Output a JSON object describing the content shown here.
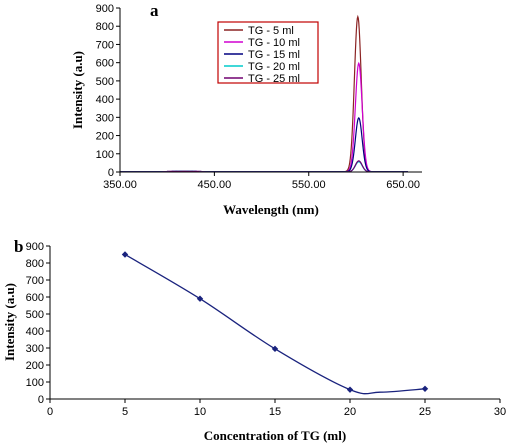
{
  "chart_data": [
    {
      "panel": "a",
      "type": "line",
      "xlabel": "Wavelength (nm)",
      "ylabel": "Intensity (a.u)",
      "xlim": [
        350,
        670
      ],
      "ylim": [
        0,
        900
      ],
      "xticks": [
        "350.00",
        "450.00",
        "550.00",
        "650.00"
      ],
      "yticks": [
        "0",
        "100",
        "200",
        "300",
        "400",
        "500",
        "600",
        "700",
        "800",
        "900"
      ],
      "legend_position": "upper-middle",
      "series": [
        {
          "name": "TG - 5 ml",
          "color": "#8b2323",
          "peak_x": 602,
          "peak_y": 850,
          "baseline": 2
        },
        {
          "name": "TG - 10 ml",
          "color": "#d000d0",
          "peak_x": 603,
          "peak_y": 595,
          "baseline": 2
        },
        {
          "name": "TG - 15 ml",
          "color": "#000080",
          "peak_x": 603,
          "peak_y": 295,
          "baseline": 2
        },
        {
          "name": "TG - 20 ml",
          "color": "#00cccc",
          "peak_x": 603,
          "peak_y": 55,
          "baseline": 1
        },
        {
          "name": "TG - 25 ml",
          "color": "#700070",
          "peak_x": 603,
          "peak_y": 60,
          "baseline": 1
        }
      ]
    },
    {
      "panel": "b",
      "type": "line",
      "xlabel": "Concentration of TG (ml)",
      "ylabel": "Intensity (a.u)",
      "xlim": [
        0,
        30
      ],
      "ylim": [
        0,
        900
      ],
      "xticks": [
        "0",
        "5",
        "10",
        "15",
        "20",
        "25",
        "30"
      ],
      "yticks": [
        "0",
        "100",
        "200",
        "300",
        "400",
        "500",
        "600",
        "700",
        "800",
        "900"
      ],
      "color": "#1a237e",
      "x": [
        5,
        10,
        15,
        20,
        25
      ],
      "y": [
        850,
        590,
        295,
        55,
        60
      ],
      "curve_min": [
        22,
        40
      ]
    }
  ]
}
